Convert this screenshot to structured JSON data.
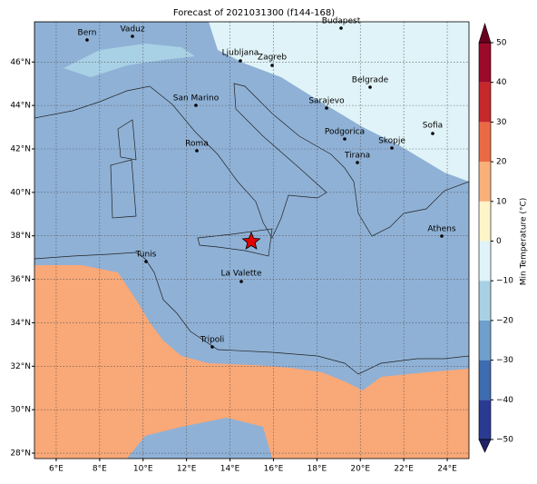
{
  "title": "Forecast of 2021031300 (f144-168)",
  "map": {
    "lonlim": [
      5,
      25
    ],
    "latlim": [
      27.75,
      47.85
    ],
    "lonticks": [
      {
        "value": 6,
        "label": "6°E"
      },
      {
        "value": 8,
        "label": "8°E"
      },
      {
        "value": 10,
        "label": "10°E"
      },
      {
        "value": 12,
        "label": "12°E"
      },
      {
        "value": 14,
        "label": "14°E"
      },
      {
        "value": 16,
        "label": "16°E"
      },
      {
        "value": 18,
        "label": "18°E"
      },
      {
        "value": 20,
        "label": "20°E"
      },
      {
        "value": 22,
        "label": "22°E"
      },
      {
        "value": 24,
        "label": "24°E"
      }
    ],
    "latticks": [
      {
        "value": 28,
        "label": "28°N"
      },
      {
        "value": 30,
        "label": "30°N"
      },
      {
        "value": 32,
        "label": "32°N"
      },
      {
        "value": 34,
        "label": "34°N"
      },
      {
        "value": 36,
        "label": "36°N"
      },
      {
        "value": 38,
        "label": "38°N"
      },
      {
        "value": 40,
        "label": "40°N"
      },
      {
        "value": 42,
        "label": "42°N"
      },
      {
        "value": 44,
        "label": "44°N"
      },
      {
        "value": 46,
        "label": "46°N"
      }
    ],
    "grid": true,
    "cities": [
      "Bern",
      "Vaduz",
      "Budapest",
      "Ljubljana",
      "Zagreb",
      "Belgrade",
      "San Marino",
      "Sarajevo",
      "Sofia",
      "Roma",
      "Podgorica",
      "Skopje",
      "Tirana",
      "Athens",
      "Tunis",
      "La Valette",
      "Tripoli"
    ]
  },
  "colorbar": {
    "label": "Min Temperature (°C)",
    "lim": [
      -50,
      50
    ],
    "ticks": [
      {
        "value": -50,
        "label": "−50"
      },
      {
        "value": -40,
        "label": "−40"
      },
      {
        "value": -30,
        "label": "−30"
      },
      {
        "value": -20,
        "label": "−20"
      },
      {
        "value": -10,
        "label": "−10"
      },
      0,
      10,
      20,
      30,
      40,
      50
    ],
    "colors": [
      "#2a3a93",
      "#3d6cb0",
      "#6f9fcb",
      "#a8d1e5",
      "#e0f3f8",
      "#fdf5c9",
      "#f9b07a",
      "#ea6a45",
      "#c6282c",
      "#9c0a2a"
    ],
    "under": "#21206b",
    "over": "#6a0020"
  }
}
